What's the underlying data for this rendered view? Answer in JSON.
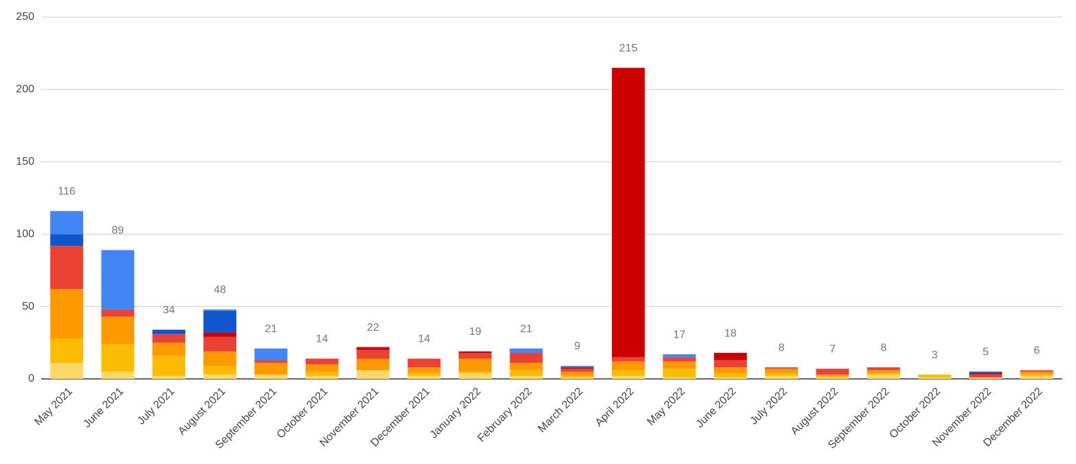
{
  "chart_data": {
    "type": "stacked_bar",
    "categories": [
      "May 2021",
      "June 2021",
      "July 2021",
      "August 2021",
      "September 2021",
      "October 2021",
      "November 2021",
      "December 2021",
      "January 2022",
      "February 2022",
      "March 2022",
      "April 2022",
      "May 2022",
      "June 2022",
      "July 2022",
      "August 2022",
      "September 2022",
      "October 2022",
      "November 2022",
      "December 2022"
    ],
    "series": [
      {
        "color": "#fdd969",
        "values": [
          11,
          5,
          2,
          3,
          3,
          2,
          6,
          2,
          4,
          2,
          1,
          2,
          1,
          1,
          2,
          1,
          3,
          1,
          1,
          2
        ]
      },
      {
        "color": "#fbbc04",
        "values": [
          17,
          19,
          14,
          6,
          0,
          3,
          0,
          2,
          1,
          4,
          1,
          4,
          6,
          3,
          2,
          1,
          1,
          2,
          0,
          1
        ]
      },
      {
        "color": "#ff9900",
        "values": [
          34,
          19,
          9,
          10,
          8,
          5,
          8,
          4,
          9,
          5,
          3,
          6,
          5,
          4,
          3,
          1,
          2,
          0,
          0,
          2
        ]
      },
      {
        "color": "#ea4335",
        "values": [
          30,
          5,
          6,
          10,
          2,
          4,
          6,
          6,
          4,
          7,
          2,
          3,
          3,
          5,
          1,
          4,
          2,
          0,
          2,
          1
        ]
      },
      {
        "color": "#cc0000",
        "values": [
          0,
          0,
          0,
          3,
          0,
          0,
          2,
          0,
          1,
          0,
          1,
          200,
          0,
          5,
          0,
          0,
          0,
          0,
          1,
          0
        ]
      },
      {
        "color": "#1155cc",
        "values": [
          8,
          0,
          3,
          15,
          0,
          0,
          0,
          0,
          0,
          0,
          0,
          0,
          0,
          0,
          0,
          0,
          0,
          0,
          1,
          0
        ]
      },
      {
        "color": "#4285f4",
        "values": [
          16,
          41,
          0,
          1,
          8,
          0,
          0,
          0,
          0,
          3,
          1,
          0,
          2,
          0,
          0,
          0,
          0,
          0,
          0,
          0
        ]
      }
    ],
    "totals": [
      116,
      89,
      34,
      48,
      21,
      14,
      22,
      14,
      19,
      21,
      9,
      215,
      17,
      18,
      8,
      7,
      8,
      3,
      5,
      6
    ],
    "ylim": [
      0,
      250
    ],
    "yticks": [
      0,
      50,
      100,
      150,
      200,
      250
    ],
    "grid": true
  }
}
